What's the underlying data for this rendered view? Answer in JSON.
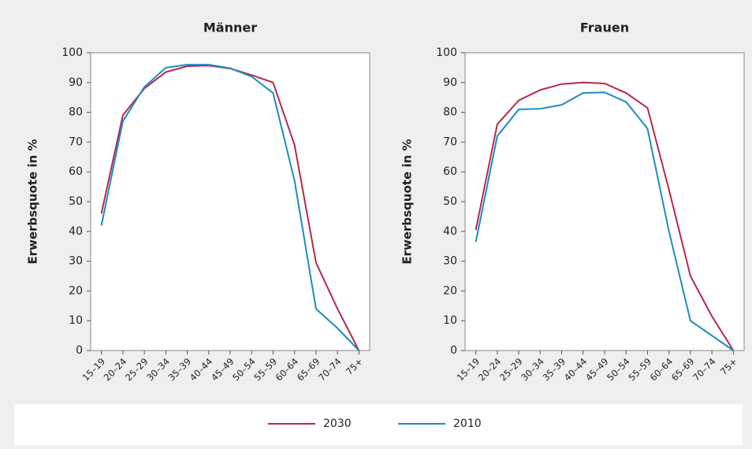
{
  "chart_data": [
    {
      "type": "line",
      "title": "Männer",
      "y_label": "Erwerbsquote in %",
      "categories": [
        "15–19",
        "20–24",
        "25–29",
        "30–34",
        "35–39",
        "40–44",
        "45–49",
        "50–54",
        "55–59",
        "60–64",
        "65–69",
        "70–74",
        "75+"
      ],
      "series": [
        {
          "name": "2030",
          "color": "#b5284c",
          "values": [
            46,
            79,
            88,
            93.5,
            95.5,
            95.7,
            94.7,
            92.5,
            90,
            69,
            29.5,
            14,
            0
          ]
        },
        {
          "name": "2010",
          "color": "#1c8ac6",
          "values": [
            42,
            77,
            88.5,
            95,
            96,
            96,
            94.8,
            92,
            86.5,
            57,
            14,
            7.5,
            0
          ]
        }
      ],
      "ylim": [
        0,
        100
      ],
      "yticks": [
        0,
        10,
        20,
        30,
        40,
        50,
        60,
        70,
        80,
        90,
        100
      ]
    },
    {
      "type": "line",
      "title": "Frauen",
      "y_label": "Erwerbsquote in %",
      "categories": [
        "15–19",
        "20–24",
        "25–29",
        "30–34",
        "35–39",
        "40–44",
        "45–49",
        "50–54",
        "55–59",
        "60–64",
        "65–69",
        "70–74",
        "75+"
      ],
      "series": [
        {
          "name": "2030",
          "color": "#b5284c",
          "values": [
            40.5,
            76,
            84,
            87.5,
            89.5,
            90,
            89.7,
            86.5,
            81.5,
            54,
            25,
            11.5,
            0
          ]
        },
        {
          "name": "2010",
          "color": "#1c8ac6",
          "values": [
            36.5,
            72,
            81,
            81.2,
            82.5,
            86.5,
            86.7,
            83.5,
            74.5,
            40,
            10,
            5,
            0
          ]
        }
      ],
      "ylim": [
        0,
        100
      ],
      "yticks": [
        0,
        10,
        20,
        30,
        40,
        50,
        60,
        70,
        80,
        90,
        100
      ]
    }
  ]
}
